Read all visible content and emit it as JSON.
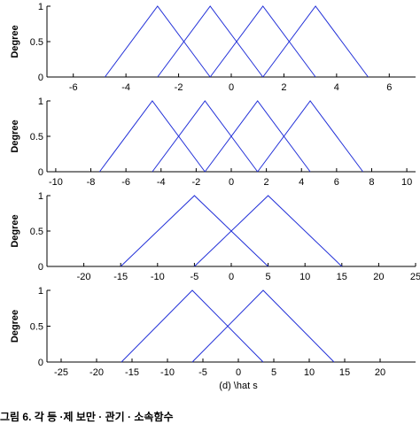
{
  "chart_data": [
    {
      "type": "line",
      "xlim": [
        -7,
        7
      ],
      "ylim": [
        0,
        1
      ],
      "xticks": [
        -6,
        -4,
        -2,
        0,
        2,
        4,
        6
      ],
      "yticks": [
        0,
        0.5,
        1
      ],
      "ylabel": "Degree",
      "xlabel": "",
      "series_color": "#2230d8",
      "series": [
        {
          "x": [
            -4.8,
            -2.8,
            -0.8
          ],
          "y": [
            0,
            1,
            0
          ]
        },
        {
          "x": [
            -2.8,
            -0.8,
            1.2
          ],
          "y": [
            0,
            1,
            0
          ]
        },
        {
          "x": [
            -0.8,
            1.2,
            3.2
          ],
          "y": [
            0,
            1,
            0
          ]
        },
        {
          "x": [
            1.2,
            3.2,
            5.2
          ],
          "y": [
            0,
            1,
            0
          ]
        }
      ]
    },
    {
      "type": "line",
      "xlim": [
        -10.5,
        10.5
      ],
      "ylim": [
        0,
        1
      ],
      "xticks": [
        -10,
        -8,
        -6,
        -4,
        -2,
        0,
        2,
        4,
        6,
        8,
        10
      ],
      "yticks": [
        0,
        0.5,
        1
      ],
      "ylabel": "Degree",
      "xlabel": "",
      "series_color": "#2230d8",
      "series": [
        {
          "x": [
            -7.5,
            -4.5,
            -1.5
          ],
          "y": [
            0,
            1,
            0
          ]
        },
        {
          "x": [
            -4.5,
            -1.5,
            1.5
          ],
          "y": [
            0,
            1,
            0
          ]
        },
        {
          "x": [
            -1.5,
            1.5,
            4.5
          ],
          "y": [
            0,
            1,
            0
          ]
        },
        {
          "x": [
            1.5,
            4.5,
            7.5
          ],
          "y": [
            0,
            1,
            0
          ]
        }
      ]
    },
    {
      "type": "line",
      "xlim": [
        -25,
        25
      ],
      "ylim": [
        0,
        1
      ],
      "xticks": [
        -20,
        -15,
        -10,
        -5,
        0,
        5,
        10,
        15,
        20,
        25
      ],
      "yticks": [
        0,
        0.5,
        1
      ],
      "ylabel": "Degree",
      "xlabel": "",
      "series_color": "#2230d8",
      "series": [
        {
          "x": [
            -15,
            -5,
            5
          ],
          "y": [
            0,
            1,
            0
          ]
        },
        {
          "x": [
            -5,
            5,
            15
          ],
          "y": [
            0,
            1,
            0
          ]
        }
      ]
    },
    {
      "type": "line",
      "xlim": [
        -27,
        25
      ],
      "ylim": [
        0,
        1
      ],
      "xticks": [
        -25,
        -20,
        -15,
        -10,
        -5,
        0,
        5,
        10,
        15,
        20
      ],
      "yticks": [
        0,
        0.5,
        1
      ],
      "ylabel": "Degree",
      "xlabel": "(d) \\hat s",
      "series_color": "#2230d8",
      "series": [
        {
          "x": [
            -16.5,
            -6.5,
            3.5
          ],
          "y": [
            0,
            1,
            0
          ]
        },
        {
          "x": [
            -6.5,
            3.5,
            13.5
          ],
          "y": [
            0,
            1,
            0
          ]
        }
      ]
    }
  ],
  "caption": "그림 6. 각 등 ·제 보만 · 관기 · 소속함수"
}
